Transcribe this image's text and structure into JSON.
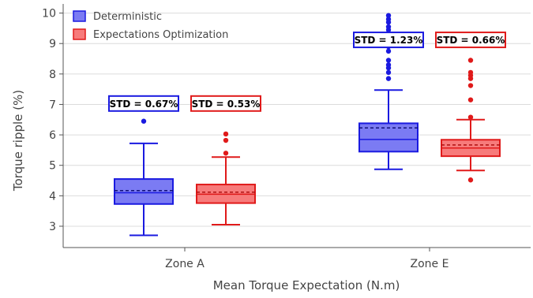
{
  "chart_data": {
    "type": "box",
    "title": "",
    "xlabel": "Mean Torque Expectation (N.m)",
    "ylabel": "Torque ripple (%)",
    "ylim": [
      2.3,
      10.3
    ],
    "yticks": [
      3,
      4,
      5,
      6,
      7,
      8,
      9,
      10
    ],
    "grid": "horizontal",
    "legend_position": "top-left",
    "categories": [
      "Zone A",
      "Zone E"
    ],
    "series": [
      {
        "name": "Deterministic",
        "fill": "#7b7bf3",
        "edge": "#1a1ae0",
        "boxes": [
          {
            "category": "Zone A",
            "whisker_low": 2.7,
            "q1": 3.73,
            "median": 4.1,
            "mean": 4.17,
            "q3": 4.55,
            "whisker_high": 5.72,
            "outliers": [
              6.45
            ],
            "std_label": "STD = 0.67%"
          },
          {
            "category": "Zone E",
            "whisker_low": 4.87,
            "q1": 5.45,
            "median": 5.85,
            "mean": 6.23,
            "q3": 6.38,
            "whisker_high": 7.47,
            "outliers": [
              7.85,
              8.05,
              8.2,
              8.3,
              8.45,
              8.75,
              8.9,
              9.05,
              9.2,
              9.35,
              9.45,
              9.55,
              9.7,
              9.8,
              9.92
            ],
            "std_label": "STD = 1.23%"
          }
        ]
      },
      {
        "name": "Expectations Optimization",
        "fill": "#f77b7b",
        "edge": "#e01a1a",
        "boxes": [
          {
            "category": "Zone A",
            "whisker_low": 3.05,
            "q1": 3.76,
            "median": 4.05,
            "mean": 4.12,
            "q3": 4.37,
            "whisker_high": 5.27,
            "outliers": [
              5.4,
              5.82,
              6.03
            ],
            "std_label": "STD = 0.53%"
          },
          {
            "category": "Zone E",
            "whisker_low": 4.83,
            "q1": 5.3,
            "median": 5.57,
            "mean": 5.67,
            "q3": 5.84,
            "whisker_high": 6.5,
            "outliers": [
              4.52,
              6.58,
              7.15,
              7.62,
              7.85,
              7.95,
              8.05,
              8.45
            ],
            "std_label": "STD = 0.66%"
          }
        ]
      }
    ]
  }
}
